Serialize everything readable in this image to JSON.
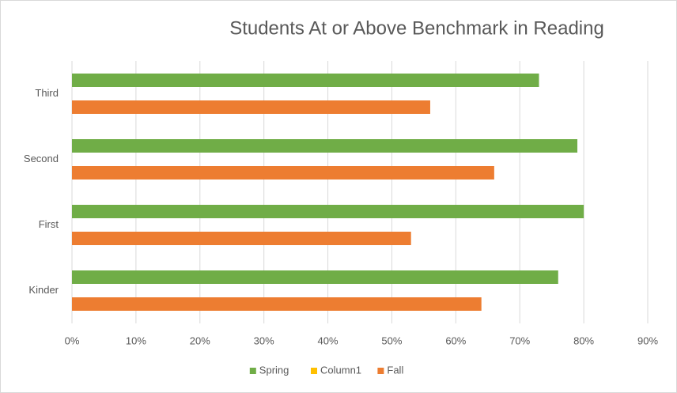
{
  "chart_data": {
    "type": "bar",
    "orientation": "horizontal",
    "title": "Students At or Above Benchmark in Reading",
    "categories": [
      "Third",
      "Second",
      "First",
      "Kinder"
    ],
    "series": [
      {
        "name": "Spring",
        "color": "#70ad47",
        "values": [
          73,
          79,
          80,
          76
        ]
      },
      {
        "name": "Column1",
        "color": "#ffc000",
        "values": [
          null,
          null,
          null,
          null
        ]
      },
      {
        "name": "Fall",
        "color": "#ed7d31",
        "values": [
          56,
          66,
          53,
          64
        ]
      }
    ],
    "xlim": [
      0,
      90
    ],
    "xticks": [
      {
        "value": 0,
        "label": "0%"
      },
      {
        "value": 10,
        "label": "10%"
      },
      {
        "value": 20,
        "label": "20%"
      },
      {
        "value": 30,
        "label": "30%"
      },
      {
        "value": 40,
        "label": "40%"
      },
      {
        "value": 50,
        "label": "50%"
      },
      {
        "value": 60,
        "label": "60%"
      },
      {
        "value": 70,
        "label": "70%"
      },
      {
        "value": 80,
        "label": "80%"
      },
      {
        "value": 90,
        "label": "90%"
      }
    ],
    "grid": true,
    "legend": "bottom"
  }
}
